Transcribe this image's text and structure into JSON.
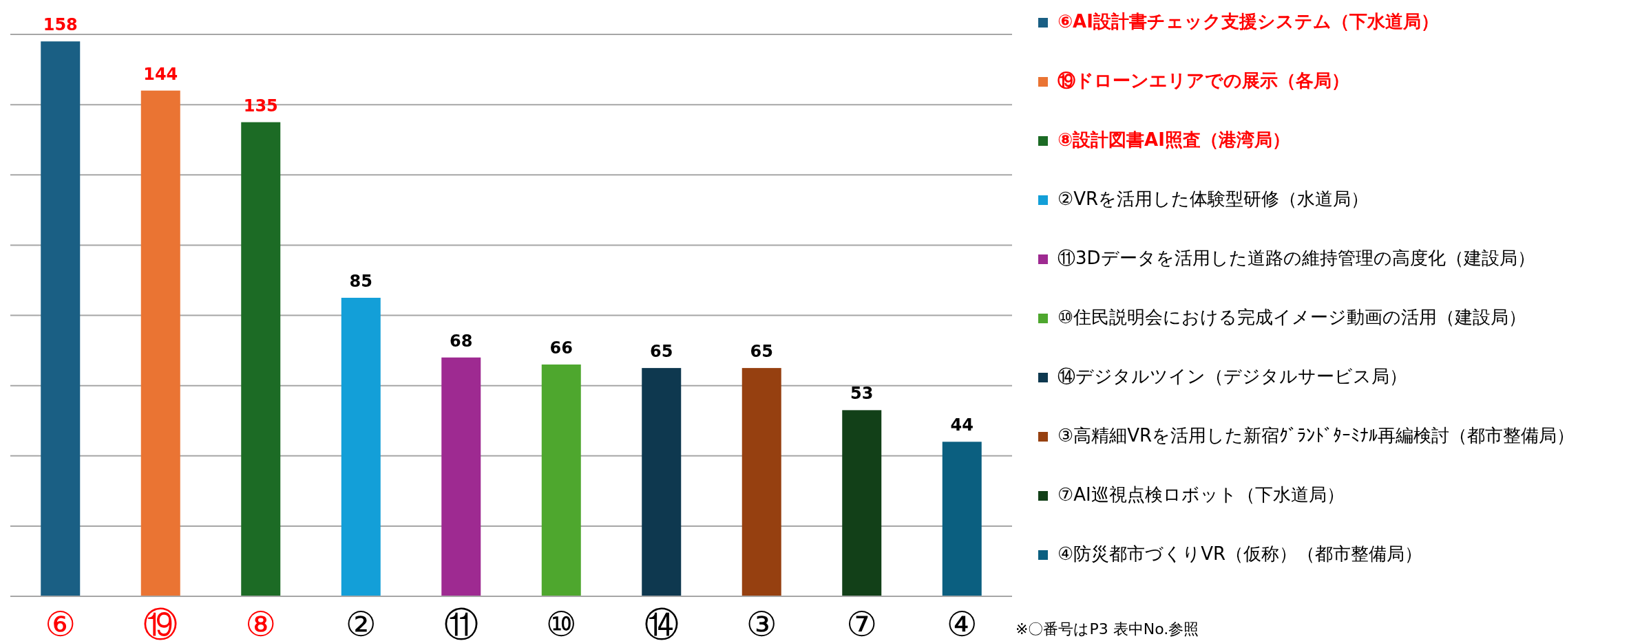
{
  "chart_data": {
    "type": "bar",
    "categories": [
      "⑥",
      "⑲",
      "⑧",
      "②",
      "⑪",
      "⑩",
      "⑭",
      "③",
      "⑦",
      "④"
    ],
    "series": [
      {
        "name": "⑥AI設計書チェック支援システム（下水道局）",
        "color": "#1a5f84",
        "values": [
          158,
          null,
          null,
          null,
          null,
          null,
          null,
          null,
          null,
          null
        ]
      },
      {
        "name": "⑲ドローンエリアでの展示（各局）",
        "color": "#ea7433",
        "values": [
          null,
          144,
          null,
          null,
          null,
          null,
          null,
          null,
          null,
          null
        ]
      },
      {
        "name": "⑧設計図書AI照査（港湾局）",
        "color": "#1c6b25",
        "values": [
          null,
          null,
          135,
          null,
          null,
          null,
          null,
          null,
          null,
          null
        ]
      },
      {
        "name": "②VRを活用した体験型研修（水道局）",
        "color": "#139fd8",
        "values": [
          null,
          null,
          null,
          85,
          null,
          null,
          null,
          null,
          null,
          null
        ]
      },
      {
        "name": "⑪3Dデータを活用した道路の維持管理の高度化（建設局）",
        "color": "#9e2a91",
        "values": [
          null,
          null,
          null,
          null,
          68,
          null,
          null,
          null,
          null,
          null
        ]
      },
      {
        "name": "⑩住民説明会における完成イメージ動画の活用（建設局）",
        "color": "#4ea72e",
        "values": [
          null,
          null,
          null,
          null,
          null,
          66,
          null,
          null,
          null,
          null
        ]
      },
      {
        "name": "⑭デジタルツイン（デジタルサービス局）",
        "color": "#0e384f",
        "values": [
          null,
          null,
          null,
          null,
          null,
          null,
          65,
          null,
          null,
          null
        ]
      },
      {
        "name": "③高精細VRを活用した新宿ｸﾞﾗﾝﾄﾞﾀｰﾐﾅﾙ再編検討（都市整備局）",
        "color": "#964010",
        "values": [
          null,
          null,
          null,
          null,
          null,
          null,
          null,
          65,
          null,
          null
        ]
      },
      {
        "name": "⑦AI巡視点検ロボット（下水道局）",
        "color": "#124018",
        "values": [
          null,
          null,
          null,
          null,
          null,
          null,
          null,
          null,
          53,
          null
        ]
      },
      {
        "name": "④防災都市づくりVR（仮称）（都市整備局）",
        "color": "#0b5f80",
        "values": [
          null,
          null,
          null,
          null,
          null,
          null,
          null,
          null,
          null,
          44
        ]
      }
    ],
    "ylim": [
      0,
      160
    ],
    "yticks": [
      {
        "value": 20,
        "label": null
      },
      {
        "value": 40,
        "label": null
      },
      {
        "value": 60,
        "label": null
      },
      {
        "value": 80,
        "label": null
      },
      {
        "value": 100,
        "label": null
      },
      {
        "value": 120,
        "label": null
      },
      {
        "value": 140,
        "label": null
      },
      {
        "value": 160,
        "label": null
      }
    ],
    "tick_labels": "x",
    "grid": "y",
    "legend": "right",
    "data_labels": true,
    "annotations": [
      "※〇番号はP3 表中No.参照"
    ]
  }
}
